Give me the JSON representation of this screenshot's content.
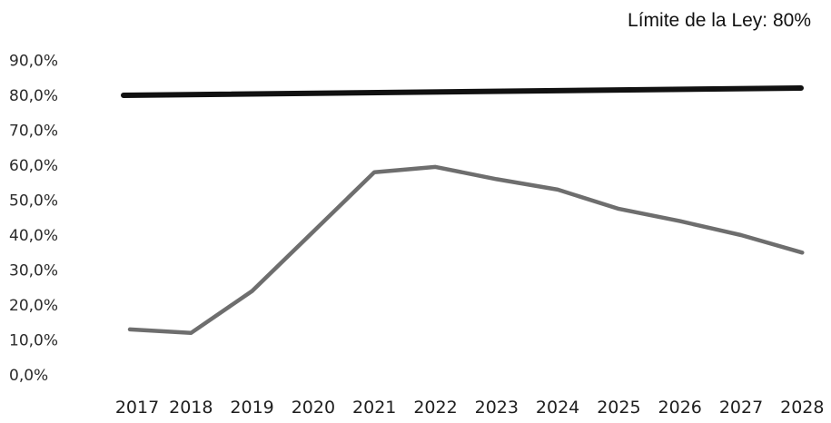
{
  "chart_data": {
    "type": "line",
    "title": "",
    "xlabel": "",
    "ylabel": "",
    "categories": [
      "2017",
      "2018",
      "2019",
      "2020",
      "2021",
      "2022",
      "2023",
      "2024",
      "2025",
      "2026",
      "2027",
      "2028"
    ],
    "yticks": [
      "0,0%",
      "10,0%",
      "20,0%",
      "30,0%",
      "40,0%",
      "50,0%",
      "60,0%",
      "70,0%",
      "80,0%",
      "90,0%"
    ],
    "ylim": [
      0,
      90
    ],
    "grid": false,
    "legend": "none",
    "series": [
      {
        "values": [
          13,
          12,
          24,
          41,
          58,
          59.5,
          56,
          53,
          47.5,
          44,
          40,
          35
        ],
        "color": "#6e6e6e"
      }
    ],
    "reference_line": {
      "value": 80,
      "color": "#111111"
    },
    "annotation": "Límite de la Ley: 80%"
  }
}
